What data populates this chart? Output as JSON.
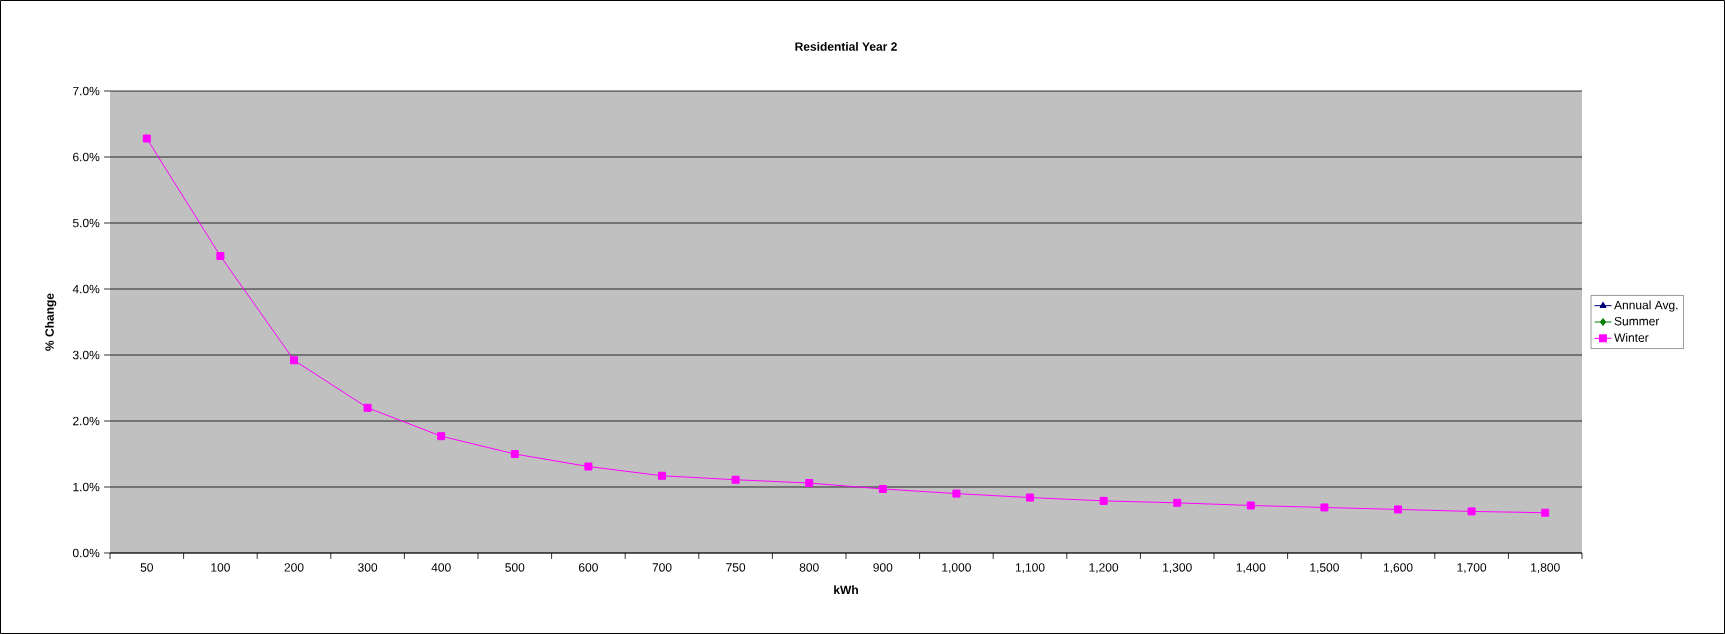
{
  "chart_data": {
    "type": "line",
    "title": "Residential Year 2",
    "xlabel": "kWh",
    "ylabel": "% Change",
    "categories": [
      "50",
      "100",
      "200",
      "300",
      "400",
      "500",
      "600",
      "700",
      "750",
      "800",
      "900",
      "1,000",
      "1,100",
      "1,200",
      "1,300",
      "1,400",
      "1,500",
      "1,600",
      "1,700",
      "1,800"
    ],
    "series": [
      {
        "name": "Annual Avg.",
        "color": "#000080",
        "marker": "triangle",
        "values": [
          null,
          null,
          null,
          null,
          null,
          null,
          null,
          null,
          null,
          null,
          null,
          null,
          null,
          null,
          null,
          null,
          null,
          null,
          null,
          null
        ]
      },
      {
        "name": "Summer",
        "color": "#008000",
        "marker": "diamond",
        "values": [
          null,
          null,
          null,
          null,
          null,
          null,
          null,
          null,
          null,
          null,
          null,
          null,
          null,
          null,
          null,
          null,
          null,
          null,
          null,
          null
        ]
      },
      {
        "name": "Winter",
        "color": "#ff00ff",
        "marker": "square",
        "values": [
          6.28,
          4.5,
          2.92,
          2.2,
          1.77,
          1.5,
          1.31,
          1.17,
          1.11,
          1.06,
          0.97,
          0.9,
          0.84,
          0.79,
          0.76,
          0.72,
          0.69,
          0.66,
          0.63,
          0.61
        ]
      }
    ],
    "ylim": [
      0,
      7
    ],
    "yticks": [
      {
        "value": 0,
        "label": "0.0%"
      },
      {
        "value": 1,
        "label": "1.0%"
      },
      {
        "value": 2,
        "label": "2.0%"
      },
      {
        "value": 3,
        "label": "3.0%"
      },
      {
        "value": 4,
        "label": "4.0%"
      },
      {
        "value": 5,
        "label": "5.0%"
      },
      {
        "value": 6,
        "label": "6.0%"
      },
      {
        "value": 7,
        "label": "7.0%"
      }
    ],
    "grid": "y",
    "legend": "right",
    "line_style": "solid"
  }
}
